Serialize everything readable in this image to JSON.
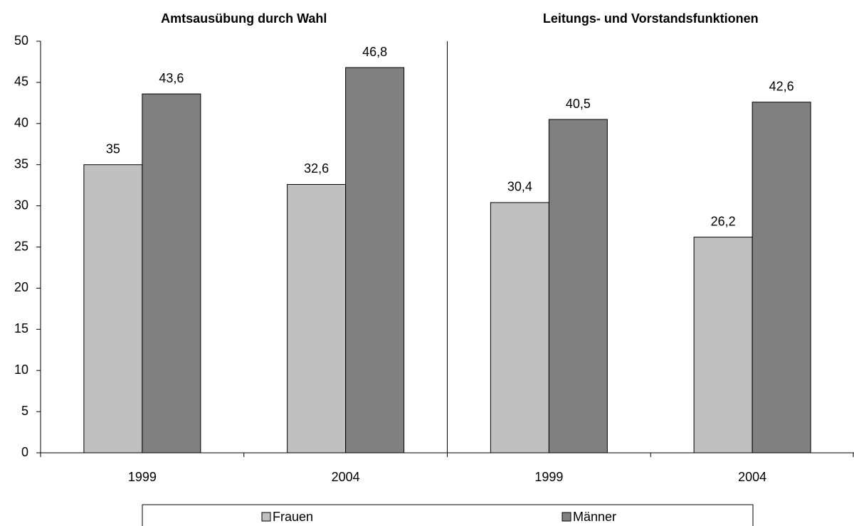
{
  "chart_data": {
    "type": "bar",
    "ylim": [
      0,
      50
    ],
    "yticks": [
      0,
      5,
      10,
      15,
      20,
      25,
      30,
      35,
      40,
      45,
      50
    ],
    "legend": [
      {
        "name": "Frauen",
        "color": "#c0c0c0"
      },
      {
        "name": "Männer",
        "color": "#808080"
      }
    ],
    "panels": [
      {
        "title": "Amtsausübung durch Wahl",
        "categories": [
          "1999",
          "2004"
        ],
        "series": [
          {
            "values": [
              35,
              32.6
            ],
            "value_labels": [
              "35",
              "32,6"
            ]
          },
          {
            "values": [
              43.6,
              46.8
            ],
            "value_labels": [
              "43,6",
              "46,8"
            ]
          }
        ]
      },
      {
        "title": "Leitungs- und Vorstandsfunktionen",
        "categories": [
          "1999",
          "2004"
        ],
        "series": [
          {
            "values": [
              30.4,
              26.2
            ],
            "value_labels": [
              "30,4",
              "26,2"
            ]
          },
          {
            "values": [
              40.5,
              42.6
            ],
            "value_labels": [
              "40,5",
              "42,6"
            ]
          }
        ]
      }
    ]
  }
}
